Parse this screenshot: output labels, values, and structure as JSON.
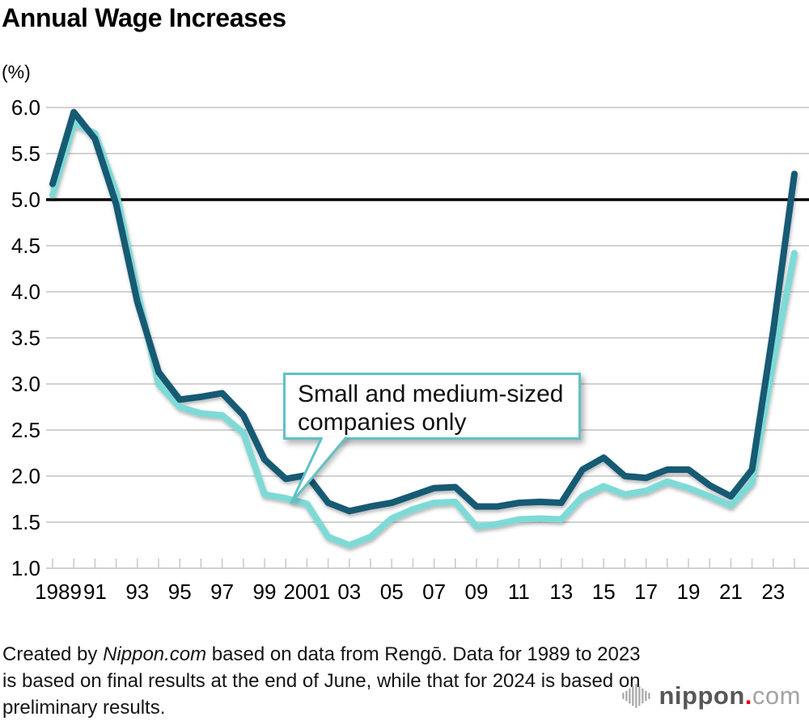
{
  "chart_data": {
    "type": "line",
    "title": "Annual Wage Increases",
    "unit_label": "(%)",
    "xlabel": "",
    "ylabel": "%",
    "ylim": [
      1.0,
      6.0
    ],
    "grid": true,
    "legend": "none",
    "reference_line_value": 5.0,
    "y_ticks": [
      "6.0",
      "5.5",
      "5.0",
      "4.5",
      "4.0",
      "3.5",
      "3.0",
      "2.5",
      "2.0",
      "1.5",
      "1.0"
    ],
    "x_years": [
      1989,
      1990,
      1991,
      1992,
      1993,
      1994,
      1995,
      1996,
      1997,
      1998,
      1999,
      2000,
      2001,
      2002,
      2003,
      2004,
      2005,
      2006,
      2007,
      2008,
      2009,
      2010,
      2011,
      2012,
      2013,
      2014,
      2015,
      2016,
      2017,
      2018,
      2019,
      2020,
      2021,
      2022,
      2023,
      2024
    ],
    "x_tick_labels": [
      "1989",
      "",
      "91",
      "",
      "93",
      "",
      "95",
      "",
      "97",
      "",
      "99",
      "",
      "2001",
      "",
      "03",
      "",
      "05",
      "",
      "07",
      "",
      "09",
      "",
      "11",
      "",
      "13",
      "",
      "15",
      "",
      "17",
      "",
      "19",
      "",
      "21",
      "",
      "23",
      ""
    ],
    "series": [
      {
        "label": "",
        "color": "#185a73",
        "values": [
          5.17,
          5.95,
          5.66,
          4.95,
          3.89,
          3.13,
          2.83,
          2.86,
          2.9,
          2.66,
          2.18,
          1.97,
          2.01,
          1.71,
          1.62,
          1.67,
          1.71,
          1.79,
          1.87,
          1.88,
          1.67,
          1.67,
          1.71,
          1.72,
          1.71,
          2.07,
          2.2,
          2.0,
          1.98,
          2.07,
          2.07,
          1.9,
          1.78,
          2.07,
          3.58,
          5.28
        ]
      },
      {
        "label": "Small and medium-sized companies only",
        "color": "#7edad6",
        "values": [
          5.05,
          5.83,
          5.72,
          5.08,
          4.0,
          3.0,
          2.75,
          2.68,
          2.66,
          2.47,
          1.8,
          1.76,
          1.7,
          1.34,
          1.25,
          1.34,
          1.54,
          1.64,
          1.71,
          1.72,
          1.45,
          1.48,
          1.53,
          1.54,
          1.53,
          1.78,
          1.89,
          1.8,
          1.84,
          1.94,
          1.87,
          1.78,
          1.68,
          1.93,
          3.23,
          4.42
        ]
      }
    ],
    "annotation": {
      "text": "Small and medium-sized companies only",
      "points_to_year": 2000
    },
    "colors": {
      "gridline": "#d2d2d2",
      "reference_line": "#000000",
      "tick": "#c8c8c8",
      "text": "#000000"
    }
  },
  "footer": {
    "note_before": "Created by ",
    "note_italic": "Nippon.com",
    "note_after": " based on data from Rengō. Data for 1989 to 2023 is based on final results at the end of June, while that for 2024 is based on preliminary results."
  },
  "logo": {
    "name": "nippon",
    "dot": ".",
    "tld": "com"
  }
}
